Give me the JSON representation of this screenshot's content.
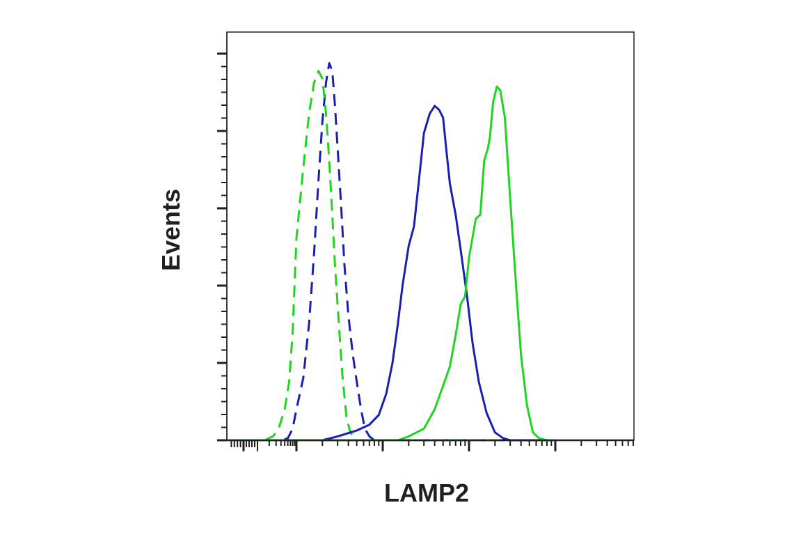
{
  "chart_data": {
    "type": "line",
    "title": "",
    "xlabel": "LAMP2",
    "ylabel": "Events",
    "x_scale": "log",
    "xlim": [
      -50,
      100000
    ],
    "ylim": [
      0,
      105
    ],
    "grid": false,
    "legend": "none",
    "series": [
      {
        "color": "#1b1fb0",
        "dash": "dashed",
        "points": [
          [
            -50,
            0
          ],
          [
            40,
            0
          ],
          [
            60,
            0.5
          ],
          [
            80,
            3
          ],
          [
            100,
            8
          ],
          [
            120,
            16
          ],
          [
            140,
            30
          ],
          [
            160,
            48
          ],
          [
            180,
            67
          ],
          [
            200,
            82
          ],
          [
            220,
            92
          ],
          [
            240,
            97
          ],
          [
            260,
            95
          ],
          [
            280,
            86
          ],
          [
            300,
            75
          ],
          [
            330,
            60
          ],
          [
            360,
            45
          ],
          [
            400,
            32
          ],
          [
            450,
            22
          ],
          [
            500,
            15
          ],
          [
            560,
            8
          ],
          [
            620,
            3
          ],
          [
            700,
            1
          ],
          [
            800,
            0
          ],
          [
            100000,
            0
          ]
        ]
      },
      {
        "color": "#1fd61f",
        "dash": "dashed",
        "points": [
          [
            -50,
            0
          ],
          [
            15,
            0
          ],
          [
            25,
            1
          ],
          [
            35,
            3
          ],
          [
            50,
            8
          ],
          [
            65,
            15
          ],
          [
            80,
            28
          ],
          [
            100,
            52
          ],
          [
            120,
            70
          ],
          [
            140,
            84
          ],
          [
            160,
            92
          ],
          [
            180,
            95
          ],
          [
            200,
            93
          ],
          [
            220,
            84
          ],
          [
            240,
            72
          ],
          [
            260,
            58
          ],
          [
            280,
            45
          ],
          [
            310,
            30
          ],
          [
            340,
            17
          ],
          [
            380,
            6
          ],
          [
            420,
            2
          ],
          [
            500,
            0
          ],
          [
            100000,
            0
          ]
        ]
      },
      {
        "color": "#1b1fb0",
        "dash": "solid",
        "points": [
          [
            -50,
            0
          ],
          [
            200,
            0
          ],
          [
            300,
            1
          ],
          [
            500,
            2.5
          ],
          [
            700,
            4
          ],
          [
            900,
            6.5
          ],
          [
            1100,
            12
          ],
          [
            1300,
            20
          ],
          [
            1500,
            30
          ],
          [
            1700,
            40
          ],
          [
            2000,
            50
          ],
          [
            2300,
            55
          ],
          [
            2600,
            66
          ],
          [
            3000,
            79
          ],
          [
            3500,
            84
          ],
          [
            4000,
            86
          ],
          [
            4500,
            85
          ],
          [
            5000,
            83
          ],
          [
            5500,
            74
          ],
          [
            6000,
            66
          ],
          [
            7000,
            58
          ],
          [
            8000,
            49
          ],
          [
            9500,
            37
          ],
          [
            11000,
            25
          ],
          [
            13000,
            15
          ],
          [
            16000,
            7
          ],
          [
            20000,
            2
          ],
          [
            25000,
            0.5
          ],
          [
            30000,
            0
          ],
          [
            100000,
            0
          ]
        ]
      },
      {
        "color": "#1fd61f",
        "dash": "solid",
        "points": [
          [
            -50,
            0
          ],
          [
            1500,
            0
          ],
          [
            2000,
            1
          ],
          [
            3000,
            3
          ],
          [
            4000,
            8
          ],
          [
            5000,
            14
          ],
          [
            6000,
            19
          ],
          [
            7000,
            27
          ],
          [
            8000,
            35
          ],
          [
            9000,
            37
          ],
          [
            10000,
            47
          ],
          [
            12000,
            57
          ],
          [
            13500,
            58
          ],
          [
            15000,
            72
          ],
          [
            16500,
            75
          ],
          [
            17500,
            78
          ],
          [
            19000,
            87
          ],
          [
            21000,
            91
          ],
          [
            23000,
            90
          ],
          [
            26000,
            83
          ],
          [
            30000,
            62
          ],
          [
            35000,
            40
          ],
          [
            40000,
            22
          ],
          [
            47000,
            9
          ],
          [
            55000,
            2
          ],
          [
            65000,
            0.5
          ],
          [
            80000,
            0
          ],
          [
            100000,
            0
          ]
        ]
      }
    ]
  }
}
